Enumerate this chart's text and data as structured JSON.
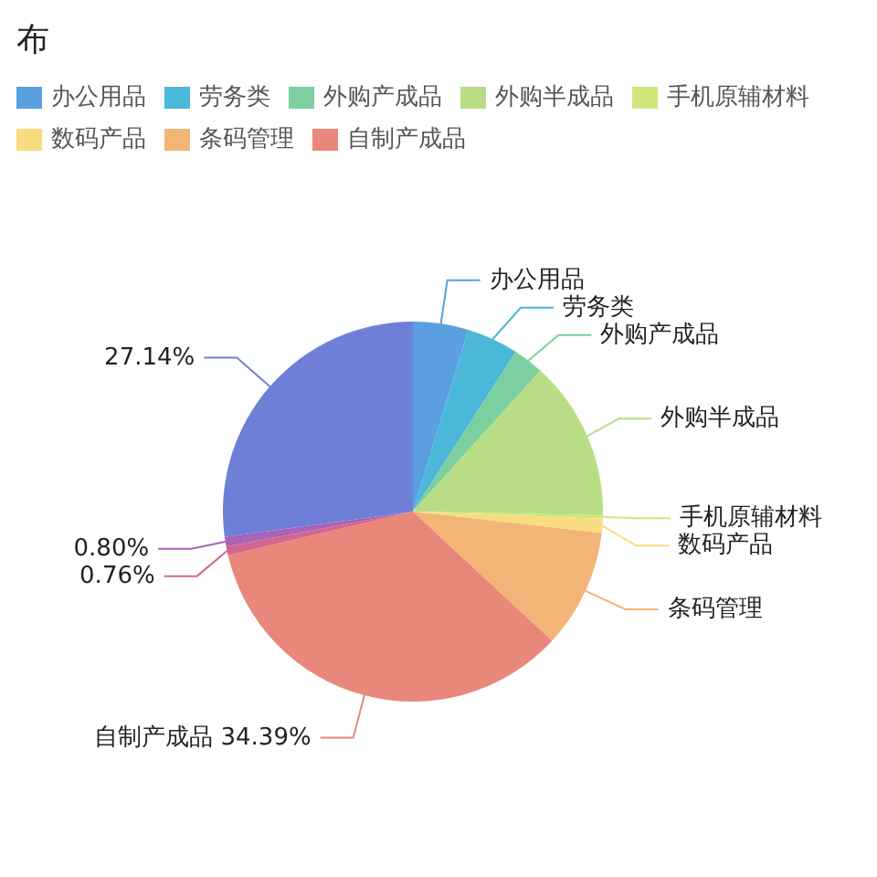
{
  "chart_data": {
    "type": "pie",
    "title": "布",
    "categories": [
      "办公用品",
      "劳务类",
      "外购产成品",
      "外购半成品",
      "手机原辅材料",
      "数码产品",
      "条码管理",
      "自制产成品",
      null,
      null,
      null
    ],
    "values": [
      4.7,
      4.4,
      2.6,
      13.6,
      0.3,
      1.2,
      10.12,
      34.39,
      0.76,
      0.8,
      27.14
    ],
    "value_labels": [
      null,
      null,
      null,
      null,
      null,
      null,
      null,
      "34.39%",
      "0.76%",
      "0.80%",
      "27.14%"
    ],
    "colors": [
      "#5a9fe0",
      "#4bb7d9",
      "#7ccf9e",
      "#b9dd85",
      "#cfe77a",
      "#f9dc80",
      "#f2b577",
      "#e8877a",
      "#d3668e",
      "#a962b5",
      "#6f7fd7"
    ],
    "legend": "top"
  }
}
